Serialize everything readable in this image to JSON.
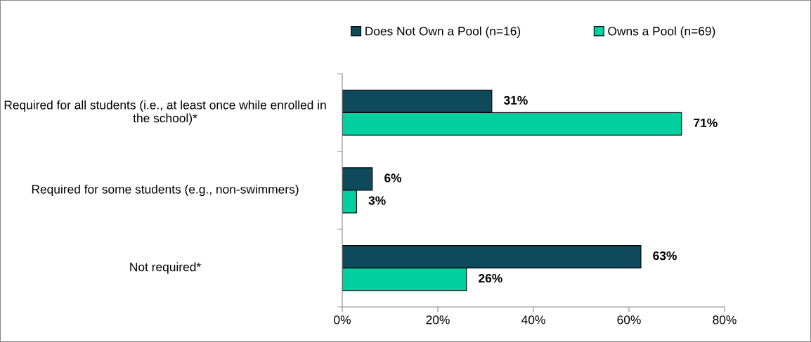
{
  "chart_data": {
    "type": "bar",
    "orientation": "horizontal",
    "categories": [
      "Required for all students (i.e., at least once while enrolled in the school)*",
      "Required for some students (e.g., non-swimmers)",
      "Not required*"
    ],
    "series": [
      {
        "name": "Does Not Own a Pool (n=16)",
        "color": "#0e4a5c",
        "values": [
          31.3,
          6.3,
          62.5
        ],
        "value_labels": [
          "31%",
          "6%",
          "63%"
        ]
      },
      {
        "name": "Owns a Pool (n=69)",
        "color": "#00d0a0",
        "values": [
          71,
          3,
          26
        ],
        "value_labels": [
          "71%",
          "3%",
          "26%"
        ]
      }
    ],
    "xlim": [
      0,
      80
    ],
    "xticks": [
      {
        "value": 0,
        "label": "0%"
      },
      {
        "value": 20,
        "label": "20%"
      },
      {
        "value": 40,
        "label": "40%"
      },
      {
        "value": 60,
        "label": "60%"
      },
      {
        "value": 80,
        "label": "80%"
      }
    ],
    "grid": false,
    "legend": "top"
  }
}
